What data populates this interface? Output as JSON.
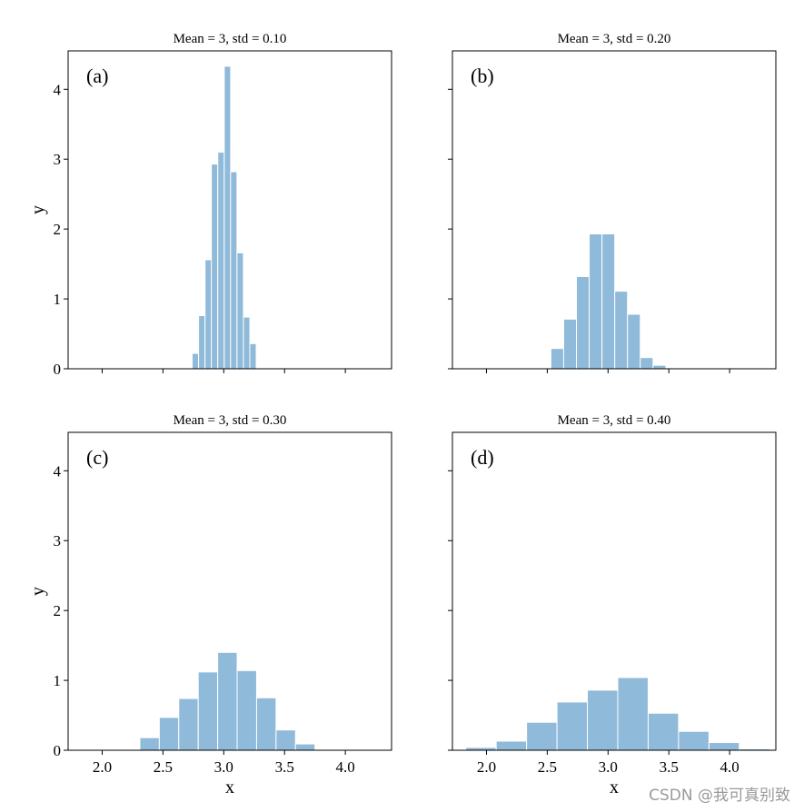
{
  "figure": {
    "watermark": "CSDN @我可真别致"
  },
  "chart_data": [
    {
      "type": "bar",
      "panel": "(a)",
      "title": "Mean = 3, std = 0.10",
      "xlabel": "",
      "ylabel": "y",
      "xlim": [
        1.72,
        4.38
      ],
      "ylim": [
        0,
        4.55
      ],
      "xticks": [
        2.0,
        2.5,
        3.0,
        3.5,
        4.0
      ],
      "xtick_labels": [
        "",
        "",
        "",
        "",
        ""
      ],
      "yticks": [
        0,
        1,
        2,
        3,
        4
      ],
      "ytick_labels": [
        "0",
        "1",
        "2",
        "3",
        "4"
      ],
      "bin_width": 0.0526,
      "bin_starts": [
        2.74,
        2.793,
        2.846,
        2.898,
        2.951,
        3.004,
        3.056,
        3.109,
        3.162,
        3.214
      ],
      "values": [
        0.22,
        0.76,
        1.56,
        2.93,
        3.1,
        4.33,
        2.82,
        1.66,
        0.74,
        0.36
      ]
    },
    {
      "type": "bar",
      "panel": "(b)",
      "title": "Mean = 3, std = 0.20",
      "xlabel": "",
      "ylabel": "",
      "xlim": [
        1.72,
        4.38
      ],
      "ylim": [
        0,
        4.55
      ],
      "xticks": [
        2.0,
        2.5,
        3.0,
        3.5,
        4.0
      ],
      "xtick_labels": [
        "",
        "",
        "",
        "",
        ""
      ],
      "yticks": [
        0,
        1,
        2,
        3,
        4
      ],
      "ytick_labels": [
        "",
        "",
        "",
        "",
        ""
      ],
      "bin_width": 0.105,
      "bin_starts": [
        2.53,
        2.635,
        2.74,
        2.845,
        2.95,
        3.055,
        3.16,
        3.265,
        3.37,
        3.475
      ],
      "values": [
        0.29,
        0.71,
        1.32,
        1.93,
        1.93,
        1.11,
        0.78,
        0.16,
        0.05,
        0
      ]
    },
    {
      "type": "bar",
      "panel": "(c)",
      "title": "Mean = 3, std = 0.30",
      "xlabel": "x",
      "ylabel": "y",
      "xlim": [
        1.72,
        4.38
      ],
      "ylim": [
        0,
        4.55
      ],
      "xticks": [
        2.0,
        2.5,
        3.0,
        3.5,
        4.0
      ],
      "xtick_labels": [
        "2.0",
        "2.5",
        "3.0",
        "3.5",
        "4.0"
      ],
      "yticks": [
        0,
        1,
        2,
        3,
        4
      ],
      "ytick_labels": [
        "0",
        "1",
        "2",
        "3",
        "4"
      ],
      "bin_width": 0.16,
      "bin_starts": [
        2.31,
        2.47,
        2.63,
        2.79,
        2.95,
        3.11,
        3.27,
        3.43,
        3.59
      ],
      "values": [
        0.18,
        0.47,
        0.74,
        1.12,
        1.4,
        1.14,
        0.75,
        0.29,
        0.09
      ]
    },
    {
      "type": "bar",
      "panel": "(d)",
      "title": "Mean = 3, std = 0.40",
      "xlabel": "x",
      "ylabel": "",
      "xlim": [
        1.72,
        4.38
      ],
      "ylim": [
        0,
        4.55
      ],
      "xticks": [
        2.0,
        2.5,
        3.0,
        3.5,
        4.0
      ],
      "xtick_labels": [
        "2.0",
        "2.5",
        "3.0",
        "3.5",
        "4.0"
      ],
      "yticks": [
        0,
        1,
        2,
        3,
        4
      ],
      "ytick_labels": [
        "",
        "",
        "",
        "",
        ""
      ],
      "bin_width": 0.25,
      "bin_starts": [
        1.83,
        2.08,
        2.33,
        2.58,
        2.83,
        3.08,
        3.33,
        3.58,
        3.83,
        4.08
      ],
      "values": [
        0.04,
        0.13,
        0.4,
        0.69,
        0.86,
        1.04,
        0.53,
        0.27,
        0.11,
        0.02
      ]
    }
  ]
}
